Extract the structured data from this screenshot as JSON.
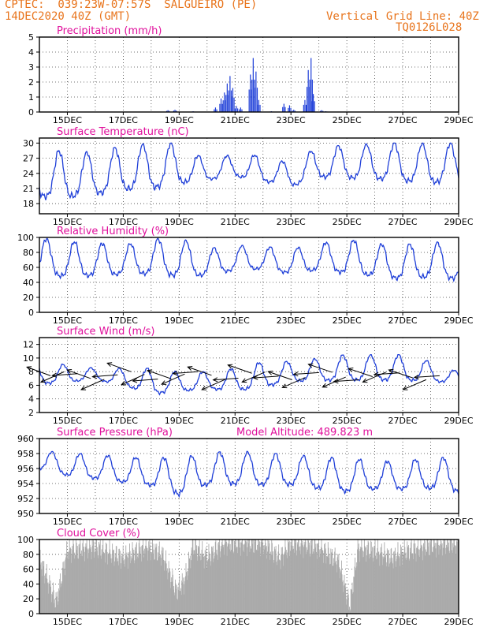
{
  "header": {
    "line1": "CPTEC:  039:23W-07:57S  SALGUEIRO (PE)",
    "line2": "14DEC2020 40Z (GMT)",
    "grid_note": "Vertical Grid Line: 40Z",
    "code": "TQ0126L028"
  },
  "colors": {
    "header": "#e8741c",
    "title": "#e0109c",
    "series": "#1f3fd8",
    "cloud": "#aaaaaa",
    "wind_arrow": "#000000"
  },
  "x_axis": {
    "start_day": 14,
    "end_day": 29,
    "tick_days": [
      15,
      17,
      19,
      21,
      23,
      25,
      27,
      29
    ],
    "tick_labels": [
      "15DEC",
      "17DEC",
      "19DEC",
      "21DEC",
      "23DEC",
      "25DEC",
      "27DEC",
      "29DEC"
    ]
  },
  "chart_data": [
    {
      "id": "precip",
      "type": "bar",
      "title": "Precipitation (mm/h)",
      "ylim": [
        0,
        5
      ],
      "yticks": [
        0,
        1,
        2,
        3,
        4,
        5
      ],
      "bursts": [
        [
          14.4,
          0.03
        ],
        [
          15.6,
          0.02
        ],
        [
          18.6,
          0.12
        ],
        [
          18.85,
          0.15
        ],
        [
          19.5,
          0.05
        ],
        [
          20.3,
          0.3
        ],
        [
          20.5,
          0.9
        ],
        [
          20.62,
          1.3
        ],
        [
          20.72,
          1.9
        ],
        [
          20.82,
          2.4
        ],
        [
          20.92,
          1.6
        ],
        [
          21.05,
          0.4
        ],
        [
          21.2,
          0.3
        ],
        [
          21.55,
          2.5
        ],
        [
          21.65,
          3.6
        ],
        [
          21.75,
          2.7
        ],
        [
          21.85,
          0.8
        ],
        [
          22.3,
          0.05
        ],
        [
          22.75,
          0.55
        ],
        [
          22.95,
          0.45
        ],
        [
          23.1,
          0.15
        ],
        [
          23.5,
          0.8
        ],
        [
          23.62,
          2.8
        ],
        [
          23.72,
          3.6
        ],
        [
          23.8,
          1.2
        ],
        [
          24.1,
          0.12
        ],
        [
          24.25,
          0.05
        ],
        [
          26.6,
          0.03
        ]
      ]
    },
    {
      "id": "temp",
      "type": "line",
      "title": "Surface Temperature (nC)",
      "ylim": [
        16,
        31
      ],
      "yticks": [
        18,
        21,
        24,
        27,
        30
      ],
      "daily": [
        [
          17.5,
          28.5
        ],
        [
          17.4,
          28.5
        ],
        [
          18.2,
          28.2
        ],
        [
          19.0,
          29.5
        ],
        [
          19.2,
          30.0
        ],
        [
          20.4,
          30.0
        ],
        [
          22.0,
          26.5
        ],
        [
          22.5,
          28.0
        ],
        [
          21.5,
          27.5
        ],
        [
          20.5,
          26.0
        ],
        [
          22.0,
          29.5
        ],
        [
          21.8,
          29.5
        ],
        [
          21.5,
          30.0
        ],
        [
          21.0,
          30.0
        ],
        [
          20.5,
          30.0
        ],
        [
          21.0,
          30.0
        ]
      ]
    },
    {
      "id": "rh",
      "type": "line",
      "title": "Relative Humidity (%)",
      "ylim": [
        0,
        100
      ],
      "yticks": [
        0,
        20,
        40,
        60,
        80,
        100
      ],
      "daily": [
        [
          40,
          100
        ],
        [
          38,
          95
        ],
        [
          40,
          93
        ],
        [
          43,
          90
        ],
        [
          42,
          98
        ],
        [
          38,
          100
        ],
        [
          42,
          85
        ],
        [
          50,
          90
        ],
        [
          52,
          88
        ],
        [
          45,
          85
        ],
        [
          50,
          92
        ],
        [
          43,
          98
        ],
        [
          40,
          92
        ],
        [
          35,
          90
        ],
        [
          38,
          95
        ],
        [
          35,
          90
        ]
      ]
    },
    {
      "id": "wind",
      "type": "line",
      "title": "Surface Wind (m/s)",
      "ylim": [
        2,
        13
      ],
      "yticks": [
        2,
        4,
        6,
        8,
        10,
        12
      ],
      "daily": [
        [
          5.5,
          9.5
        ],
        [
          6.0,
          9.0
        ],
        [
          6.5,
          8.5
        ],
        [
          5.5,
          8.5
        ],
        [
          4.0,
          8.5
        ],
        [
          4.5,
          8.0
        ],
        [
          5.0,
          8.0
        ],
        [
          4.5,
          8.5
        ],
        [
          5.0,
          9.5
        ],
        [
          6.0,
          9.5
        ],
        [
          6.0,
          10.0
        ],
        [
          6.0,
          10.5
        ],
        [
          6.0,
          10.5
        ],
        [
          6.0,
          10.5
        ],
        [
          6.0,
          9.5
        ],
        [
          6.0,
          8.0
        ]
      ]
    },
    {
      "id": "pres",
      "type": "line",
      "title": "Surface Pressure (hPa)",
      "annotation": "Model Altitude: 489.823 m",
      "ylim": [
        950,
        960
      ],
      "yticks": [
        950,
        952,
        954,
        956,
        958,
        960
      ],
      "daily": [
        [
          955.5,
          958.5
        ],
        [
          954.5,
          958.0
        ],
        [
          954.0,
          958.0
        ],
        [
          953.5,
          957.5
        ],
        [
          953.0,
          957.5
        ],
        [
          951.5,
          957.5
        ],
        [
          953.0,
          958.0
        ],
        [
          953.0,
          958.5
        ],
        [
          953.0,
          958.0
        ],
        [
          953.0,
          958.0
        ],
        [
          952.5,
          957.5
        ],
        [
          952.0,
          957.5
        ],
        [
          952.5,
          957.0
        ],
        [
          952.5,
          957.0
        ],
        [
          952.5,
          957.5
        ],
        [
          952.0,
          957.5
        ]
      ]
    },
    {
      "id": "cloud",
      "type": "bar",
      "title": "Cloud Cover (%)",
      "ylim": [
        0,
        100
      ],
      "yticks": [
        0,
        20,
        40,
        60,
        80,
        100
      ],
      "levels": [
        [
          14.0,
          75
        ],
        [
          14.6,
          15
        ],
        [
          15.0,
          85
        ],
        [
          16.0,
          90
        ],
        [
          17.0,
          75
        ],
        [
          17.8,
          90
        ],
        [
          18.4,
          80
        ],
        [
          18.9,
          30
        ],
        [
          19.2,
          45
        ],
        [
          19.5,
          92
        ],
        [
          20.0,
          75
        ],
        [
          20.6,
          95
        ],
        [
          21.0,
          95
        ],
        [
          22.0,
          95
        ],
        [
          22.6,
          75
        ],
        [
          23.0,
          95
        ],
        [
          24.0,
          90
        ],
        [
          24.7,
          70
        ],
        [
          25.1,
          10
        ],
        [
          25.4,
          88
        ],
        [
          26.0,
          85
        ],
        [
          26.6,
          75
        ],
        [
          27.2,
          85
        ],
        [
          28.0,
          92
        ],
        [
          28.5,
          95
        ],
        [
          29.0,
          95
        ]
      ]
    }
  ]
}
